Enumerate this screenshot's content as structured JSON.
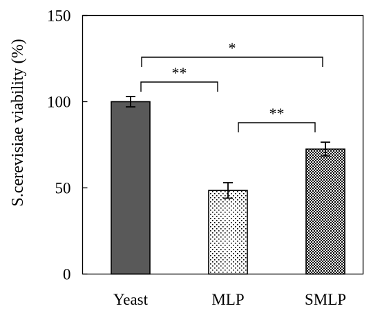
{
  "chart_data": {
    "type": "bar",
    "title": "",
    "xlabel": "",
    "ylabel": "S.cerevisiae viability (%)",
    "ylim": [
      0,
      150
    ],
    "yticks": [
      "0",
      "50",
      "100",
      "150"
    ],
    "categories": [
      "Yeast",
      "MLP",
      "SMLP"
    ],
    "values": [
      100,
      48.5,
      72.5
    ],
    "errors": [
      3,
      4.5,
      4
    ],
    "bar_styles": [
      {
        "fill": "solid",
        "color": "#595959"
      },
      {
        "fill": "sparse-dots",
        "color": "#000000"
      },
      {
        "fill": "dense-checker",
        "color": "#000000"
      }
    ],
    "significance": [
      {
        "from": "Yeast",
        "to": "SMLP",
        "label": "*"
      },
      {
        "from": "Yeast",
        "to": "MLP",
        "label": "**"
      },
      {
        "from": "MLP",
        "to": "SMLP",
        "label": "**"
      }
    ],
    "grid": false,
    "legend": "none"
  }
}
